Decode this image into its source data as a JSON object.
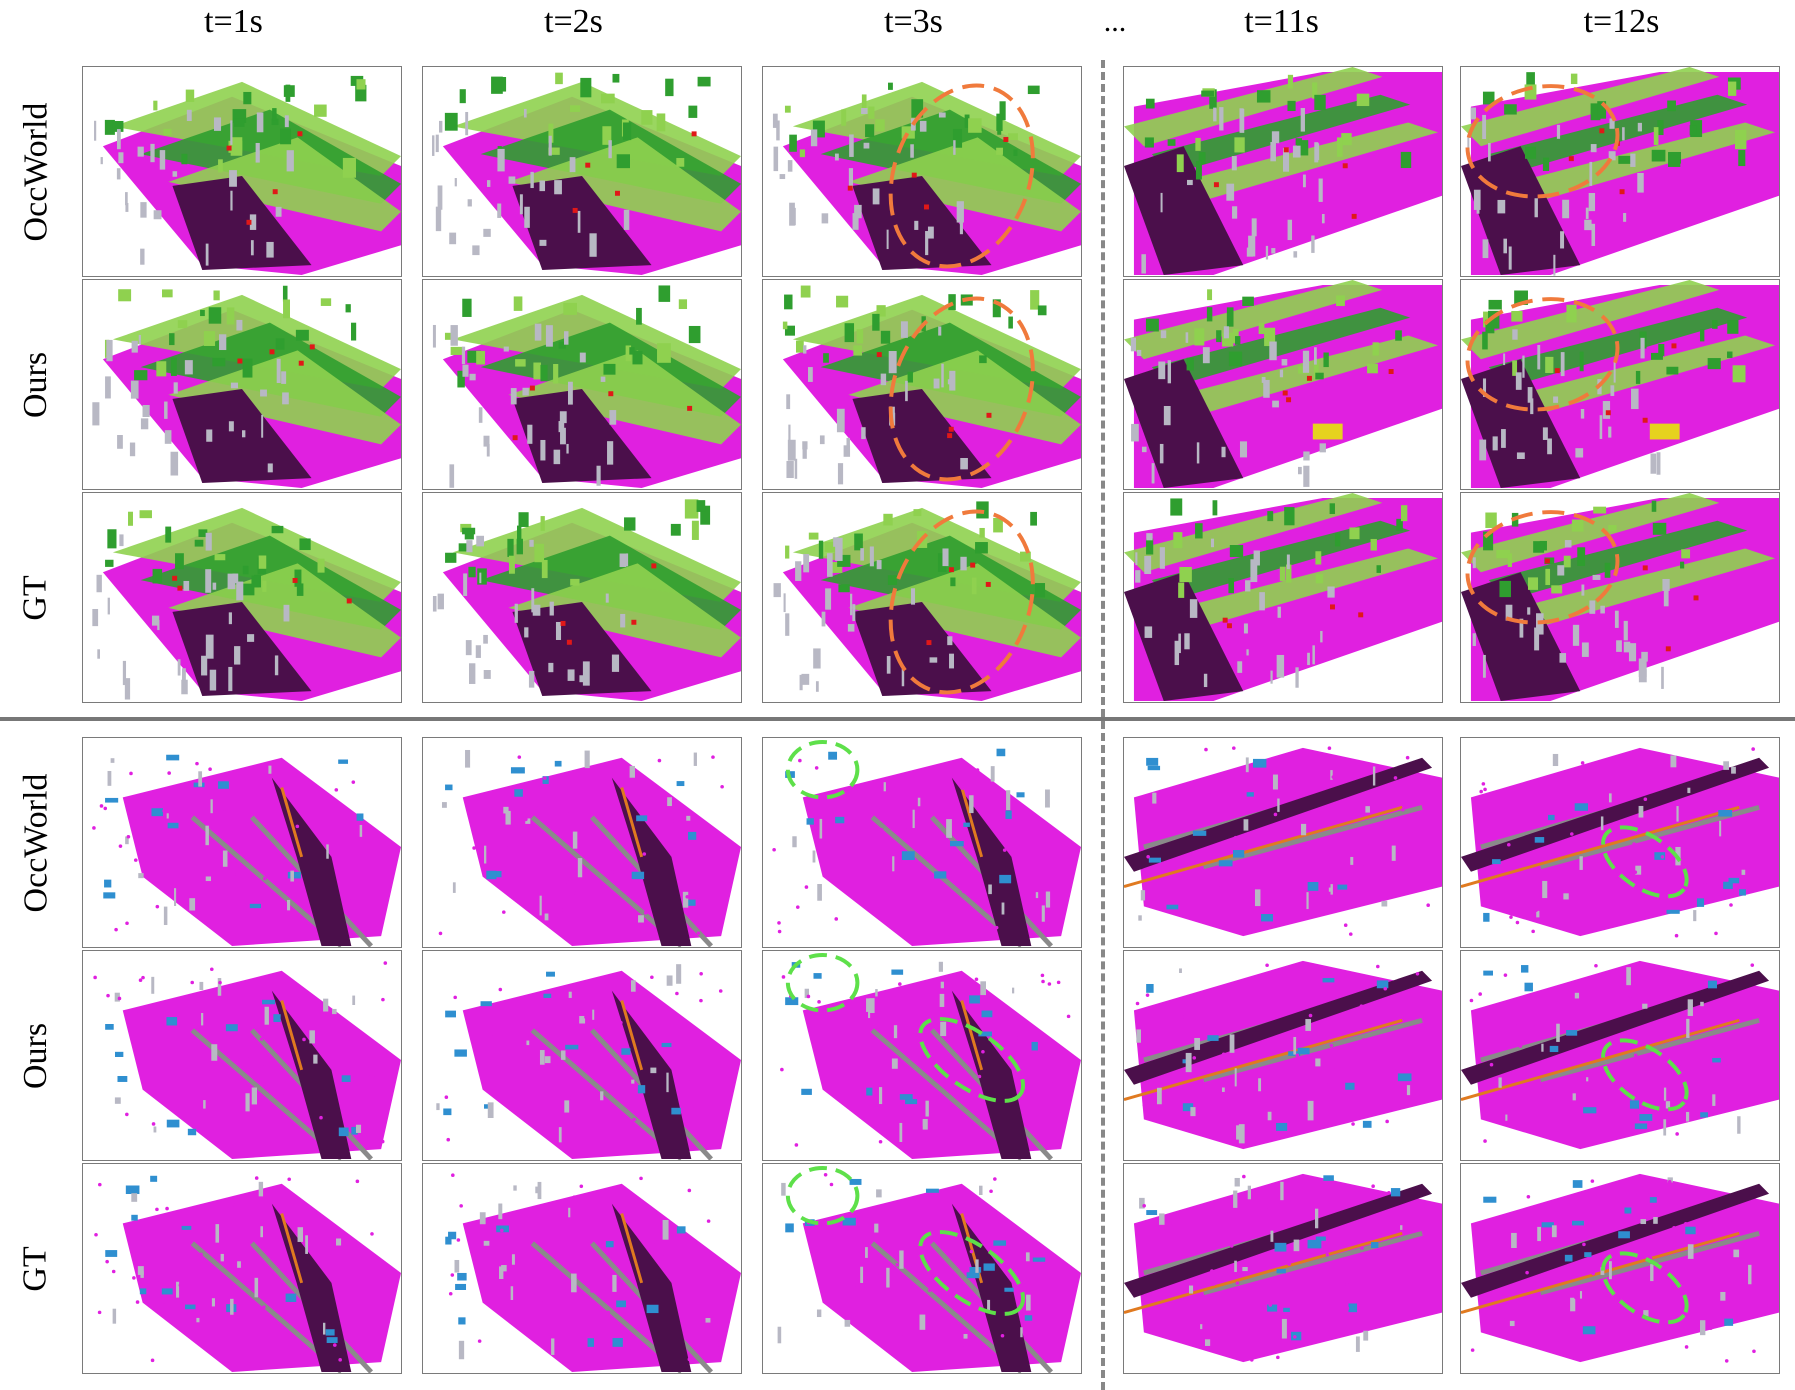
{
  "columns": [
    "t=1s",
    "t=2s",
    "t=3s",
    "t=11s",
    "t=12s"
  ],
  "ellipsis": "...",
  "sections": [
    {
      "rows": [
        "OccWorld",
        "Ours",
        "GT"
      ],
      "highlight_color": "#f07a3c",
      "scene": "street-a"
    },
    {
      "rows": [
        "OccWorld",
        "Ours",
        "GT"
      ],
      "highlight_color": "#5ee04a",
      "scene": "intersection-b"
    }
  ],
  "colors": {
    "drivable_surface": "#e020e0",
    "vegetation": "#2f9e2f",
    "terrain": "#8fd14f",
    "manmade": "#b8b8c4",
    "sidewalk": "#4b0f4b",
    "car": "#2f8fd0",
    "truck": "#e6d21e",
    "barrier": "#e07a20",
    "pedestrian": "#e01818"
  }
}
